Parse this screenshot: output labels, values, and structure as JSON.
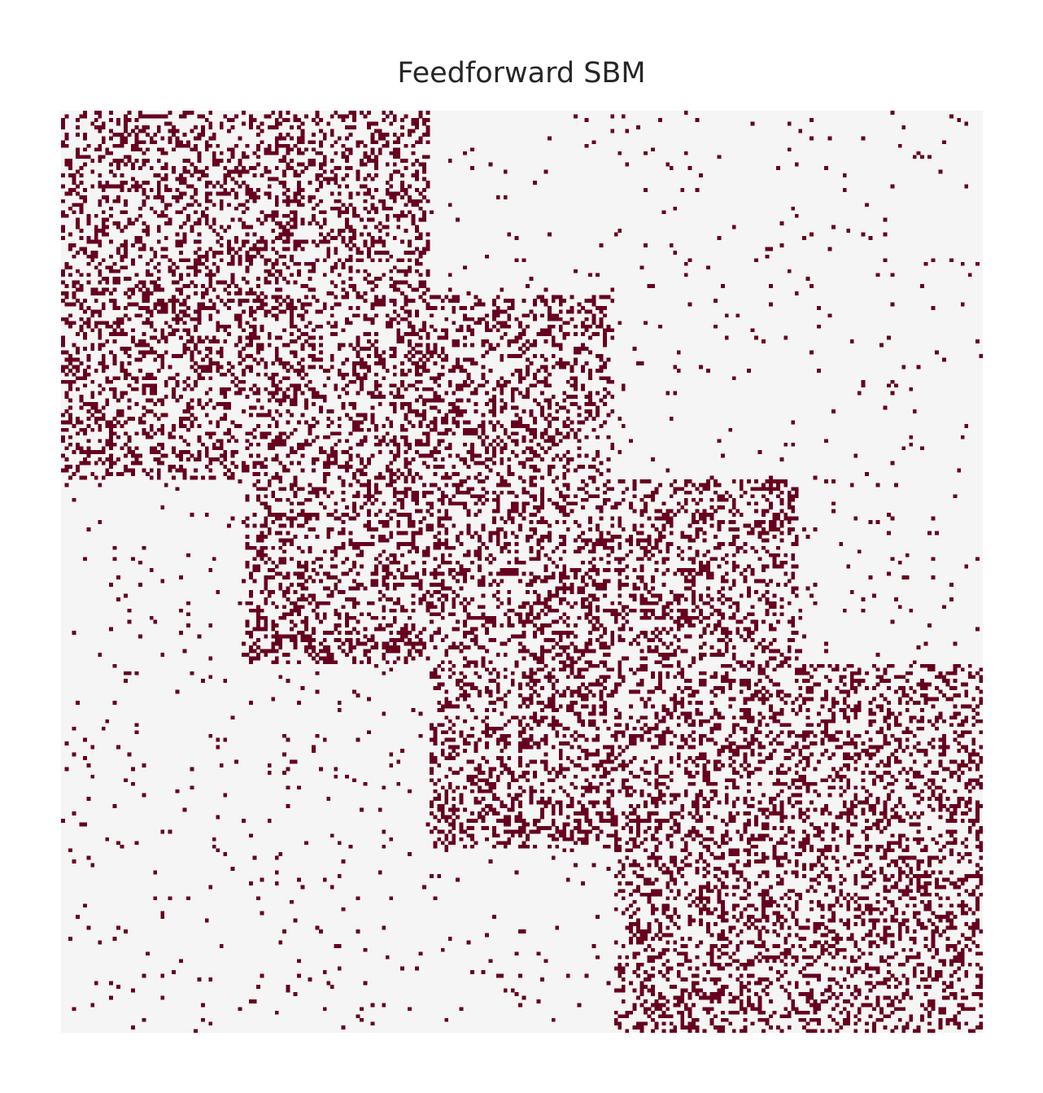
{
  "chart_data": {
    "type": "heatmap",
    "title": "Feedforward SBM",
    "xlabel": "",
    "ylabel": "",
    "matrix_kind": "binary adjacency matrix",
    "n_nodes": 250,
    "communities": [
      {
        "start": 0,
        "end": 100
      },
      {
        "start": 50,
        "end": 150
      },
      {
        "start": 100,
        "end": 200
      },
      {
        "start": 150,
        "end": 250
      }
    ],
    "block_probabilities": {
      "within_community": 0.3,
      "background": 0.02
    },
    "colors": {
      "edge": "#67001f",
      "no_edge": "#f5f5f5"
    },
    "grid": false,
    "axes_visible": false,
    "legend": "none"
  }
}
